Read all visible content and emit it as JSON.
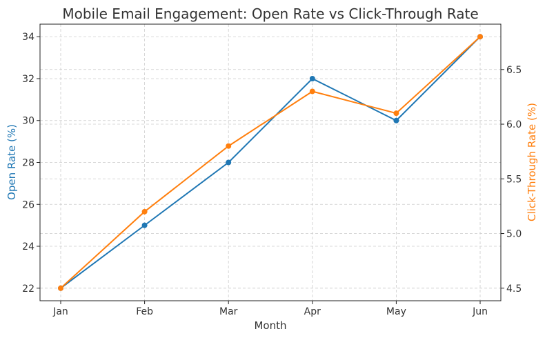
{
  "chart_data": {
    "type": "line",
    "title": "Mobile Email Engagement: Open Rate vs Click-Through Rate",
    "xlabel": "Month",
    "categories": [
      "Jan",
      "Feb",
      "Mar",
      "Apr",
      "May",
      "Jun"
    ],
    "grid": true,
    "series": [
      {
        "axis": "left",
        "ylabel": "Open Rate (%)",
        "color": "#1f77b4",
        "values": [
          22,
          25,
          28,
          32,
          30,
          34
        ]
      },
      {
        "axis": "right",
        "ylabel": "Click-Through Rate (%)",
        "color": "#ff7f0e",
        "values": [
          4.5,
          5.2,
          5.8,
          6.3,
          6.1,
          6.8
        ]
      }
    ],
    "y_left": {
      "lim": [
        21.4,
        34.6
      ],
      "ticks": [
        "22",
        "24",
        "26",
        "28",
        "30",
        "32",
        "34"
      ]
    },
    "y_right": {
      "lim": [
        4.385,
        6.915
      ],
      "ticks": [
        "4.5",
        "5.0",
        "5.5",
        "6.0",
        "6.5"
      ]
    }
  }
}
